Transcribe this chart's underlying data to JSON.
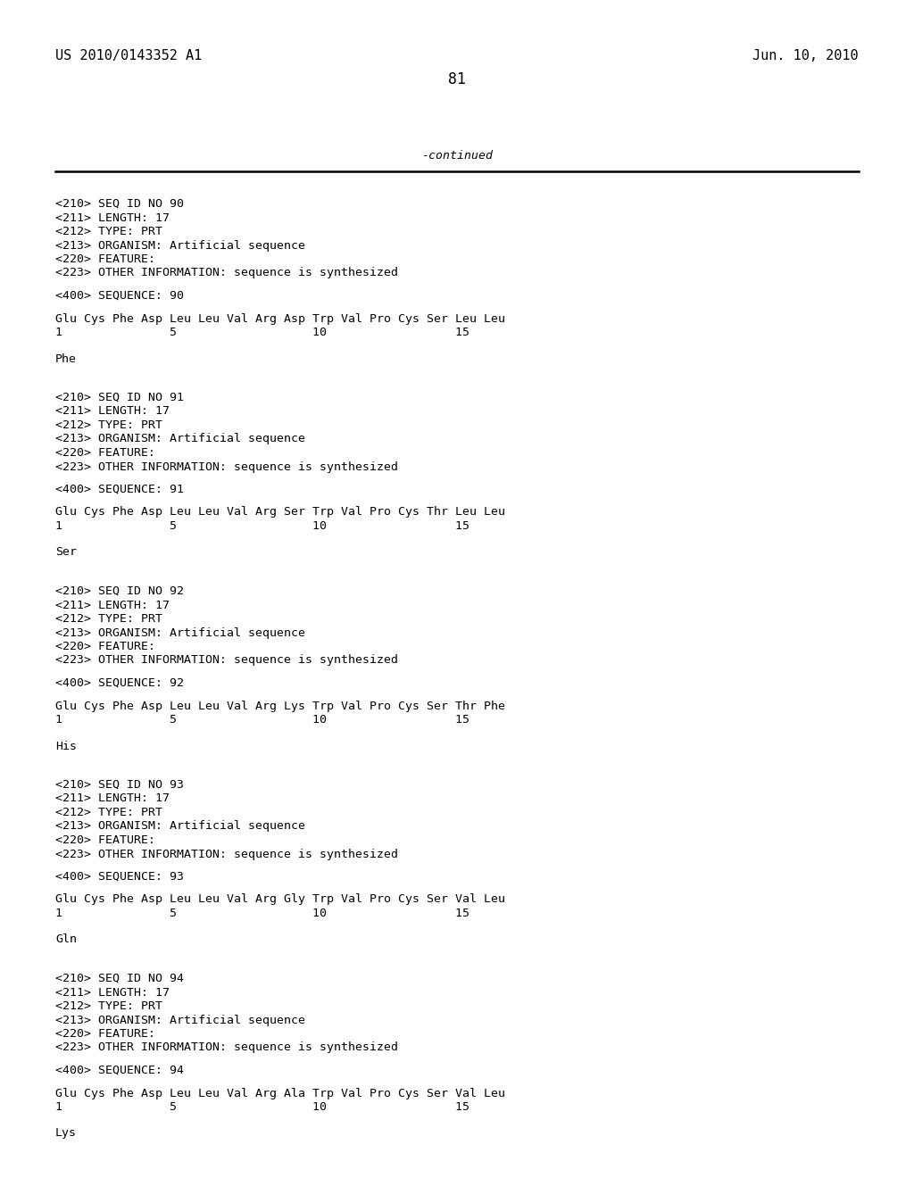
{
  "background_color": "#ffffff",
  "header_left": "US 2010/0143352 A1",
  "header_right": "Jun. 10, 2010",
  "page_number": "81",
  "continued_text": "-continued",
  "font_size_header": 11.0,
  "font_size_mono": 9.5,
  "sections": [
    {
      "seq_id": "90",
      "meta": [
        "<210> SEQ ID NO 90",
        "<211> LENGTH: 17",
        "<212> TYPE: PRT",
        "<213> ORGANISM: Artificial sequence",
        "<220> FEATURE:",
        "<223> OTHER INFORMATION: sequence is synthesized"
      ],
      "sequence_label": "<400> SEQUENCE: 90",
      "sequence_line": "Glu Cys Phe Asp Leu Leu Val Arg Asp Trp Val Pro Cys Ser Leu Leu",
      "numbers_line": "1               5                   10                  15",
      "residue": "Phe"
    },
    {
      "seq_id": "91",
      "meta": [
        "<210> SEQ ID NO 91",
        "<211> LENGTH: 17",
        "<212> TYPE: PRT",
        "<213> ORGANISM: Artificial sequence",
        "<220> FEATURE:",
        "<223> OTHER INFORMATION: sequence is synthesized"
      ],
      "sequence_label": "<400> SEQUENCE: 91",
      "sequence_line": "Glu Cys Phe Asp Leu Leu Val Arg Ser Trp Val Pro Cys Thr Leu Leu",
      "numbers_line": "1               5                   10                  15",
      "residue": "Ser"
    },
    {
      "seq_id": "92",
      "meta": [
        "<210> SEQ ID NO 92",
        "<211> LENGTH: 17",
        "<212> TYPE: PRT",
        "<213> ORGANISM: Artificial sequence",
        "<220> FEATURE:",
        "<223> OTHER INFORMATION: sequence is synthesized"
      ],
      "sequence_label": "<400> SEQUENCE: 92",
      "sequence_line": "Glu Cys Phe Asp Leu Leu Val Arg Lys Trp Val Pro Cys Ser Thr Phe",
      "numbers_line": "1               5                   10                  15",
      "residue": "His"
    },
    {
      "seq_id": "93",
      "meta": [
        "<210> SEQ ID NO 93",
        "<211> LENGTH: 17",
        "<212> TYPE: PRT",
        "<213> ORGANISM: Artificial sequence",
        "<220> FEATURE:",
        "<223> OTHER INFORMATION: sequence is synthesized"
      ],
      "sequence_label": "<400> SEQUENCE: 93",
      "sequence_line": "Glu Cys Phe Asp Leu Leu Val Arg Gly Trp Val Pro Cys Ser Val Leu",
      "numbers_line": "1               5                   10                  15",
      "residue": "Gln"
    },
    {
      "seq_id": "94",
      "meta": [
        "<210> SEQ ID NO 94",
        "<211> LENGTH: 17",
        "<212> TYPE: PRT",
        "<213> ORGANISM: Artificial sequence",
        "<220> FEATURE:",
        "<223> OTHER INFORMATION: sequence is synthesized"
      ],
      "sequence_label": "<400> SEQUENCE: 94",
      "sequence_line": "Glu Cys Phe Asp Leu Leu Val Arg Ala Trp Val Pro Cys Ser Val Leu",
      "numbers_line": "1               5                   10                  15",
      "residue": "Lys"
    }
  ]
}
